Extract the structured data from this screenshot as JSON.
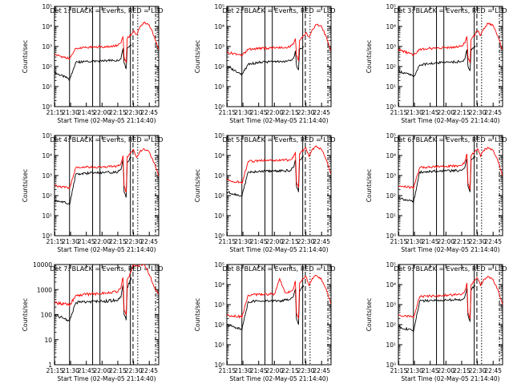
{
  "colors": {
    "events": "#000000",
    "lld": "#ff0000",
    "axis": "#000000"
  },
  "common": {
    "xlabel": "Start Time (02-May-05 21:14:40)",
    "ylabel": "Counts/sec",
    "x_ticks": [
      "21:15",
      "21:30",
      "21:45",
      "22:00",
      "22:15",
      "22:30",
      "22:45"
    ]
  },
  "chart_data": [
    {
      "type": "line",
      "title": "Det 1: BLACK = Events, RED = LLD",
      "y_scale": "log",
      "xlim": [
        "21:14:40",
        "22:54:00"
      ],
      "ylim": [
        1,
        100000
      ],
      "y_ticks": [
        "10⁰",
        "10¹",
        "10²",
        "10³",
        "10⁴",
        "10⁵"
      ],
      "series": [
        {
          "name": "Events",
          "x": [
            "21:14:40",
            "21:28",
            "21:29",
            "21:35",
            "21:45",
            "22:00",
            "22:15",
            "22:18",
            "22:20",
            "22:21",
            "22:23",
            "22:24",
            "22:28",
            "22:30",
            "22:33",
            "22:36",
            "22:40",
            "22:45",
            "22:50",
            "22:54"
          ],
          "y": [
            50,
            25,
            22,
            160,
            180,
            190,
            200,
            250,
            800,
            150,
            80,
            800,
            1200,
            null,
            null,
            null,
            null,
            null,
            null,
            null
          ]
        },
        {
          "name": "LLD",
          "x": [
            "21:14:40",
            "21:28",
            "21:29",
            "21:35",
            "21:45",
            "22:00",
            "22:15",
            "22:18",
            "22:20",
            "22:21",
            "22:23",
            "22:24",
            "22:28",
            "22:30",
            "22:33",
            "22:36",
            "22:40",
            "22:45",
            "22:50",
            "22:54"
          ],
          "y": [
            400,
            250,
            230,
            800,
            900,
            950,
            1100,
            1500,
            3000,
            300,
            150,
            2500,
            4000,
            6000,
            4000,
            9000,
            15000,
            12000,
            3000,
            700
          ]
        }
      ]
    },
    {
      "type": "line",
      "title": "Det 2: BLACK = Events, RED = LLD",
      "y_scale": "log",
      "xlim": [
        "21:14:40",
        "22:54:00"
      ],
      "ylim": [
        1,
        100000
      ],
      "y_ticks": [
        "10⁰",
        "10¹",
        "10²",
        "10³",
        "10⁴",
        "10⁵"
      ],
      "series": [
        {
          "name": "Events",
          "x": [
            "21:14:40",
            "21:28",
            "21:29",
            "21:35",
            "21:45",
            "22:00",
            "22:15",
            "22:18",
            "22:20",
            "22:21",
            "22:23",
            "22:24",
            "22:28",
            "22:30",
            "22:33",
            "22:36",
            "22:40",
            "22:45",
            "22:50",
            "22:54"
          ],
          "y": [
            100,
            45,
            40,
            130,
            160,
            180,
            190,
            250,
            600,
            120,
            70,
            700,
            1000,
            null,
            null,
            null,
            null,
            null,
            null,
            null
          ]
        },
        {
          "name": "LLD",
          "x": [
            "21:14:40",
            "21:28",
            "21:29",
            "21:35",
            "21:45",
            "22:00",
            "22:15",
            "22:18",
            "22:20",
            "22:21",
            "22:23",
            "22:24",
            "22:28",
            "22:30",
            "22:33",
            "22:36",
            "22:40",
            "22:45",
            "22:50",
            "22:54"
          ],
          "y": [
            500,
            400,
            350,
            700,
            800,
            850,
            950,
            1300,
            2500,
            350,
            200,
            2000,
            3500,
            5000,
            3000,
            7000,
            12000,
            10000,
            2500,
            600
          ]
        }
      ]
    },
    {
      "type": "line",
      "title": "Det 3: BLACK = Events, RED = LLD",
      "y_scale": "log",
      "xlim": [
        "21:14:40",
        "22:54:00"
      ],
      "ylim": [
        1,
        100000
      ],
      "y_ticks": [
        "10⁰",
        "10¹",
        "10²",
        "10³",
        "10⁴",
        "10⁵"
      ],
      "series": [
        {
          "name": "Events",
          "x": [
            "21:14:40",
            "21:28",
            "21:29",
            "21:35",
            "21:45",
            "22:00",
            "22:15",
            "22:18",
            "22:20",
            "22:21",
            "22:23",
            "22:24",
            "22:28",
            "22:30",
            "22:33",
            "22:36",
            "22:40",
            "22:45",
            "22:50",
            "22:54"
          ],
          "y": [
            60,
            35,
            30,
            120,
            140,
            160,
            180,
            230,
            700,
            110,
            60,
            750,
            1100,
            null,
            null,
            null,
            null,
            null,
            null,
            null
          ]
        },
        {
          "name": "LLD",
          "x": [
            "21:14:40",
            "21:28",
            "21:29",
            "21:35",
            "21:45",
            "22:00",
            "22:15",
            "22:18",
            "22:20",
            "22:21",
            "22:23",
            "22:24",
            "22:28",
            "22:30",
            "22:33",
            "22:36",
            "22:40",
            "22:45",
            "22:50",
            "22:54"
          ],
          "y": [
            700,
            400,
            380,
            700,
            800,
            900,
            1000,
            1500,
            3000,
            300,
            150,
            2200,
            4000,
            6000,
            3500,
            8000,
            14000,
            11000,
            2800,
            700
          ]
        }
      ]
    },
    {
      "type": "line",
      "title": "Det 4: BLACK = Events, RED = LLD",
      "y_scale": "log",
      "xlim": [
        "21:14:40",
        "22:54:00"
      ],
      "ylim": [
        1,
        100000
      ],
      "y_ticks": [
        "10⁰",
        "10¹",
        "10²",
        "10³",
        "10⁴",
        "10⁵"
      ],
      "series": [
        {
          "name": "Events",
          "x": [
            "21:14:40",
            "21:28",
            "21:29",
            "21:35",
            "21:45",
            "22:00",
            "22:15",
            "22:18",
            "22:20",
            "22:21",
            "22:23",
            "22:24",
            "22:28",
            "22:30",
            "22:33",
            "22:36",
            "22:40",
            "22:45",
            "22:50",
            "22:54"
          ],
          "y": [
            60,
            40,
            35,
            1200,
            1300,
            1400,
            1500,
            2000,
            6000,
            150,
            80,
            5000,
            8000,
            null,
            null,
            null,
            null,
            null,
            null,
            null
          ]
        },
        {
          "name": "LLD",
          "x": [
            "21:14:40",
            "21:28",
            "21:29",
            "21:35",
            "21:45",
            "22:00",
            "22:15",
            "22:18",
            "22:20",
            "22:21",
            "22:23",
            "22:24",
            "22:28",
            "22:30",
            "22:33",
            "22:36",
            "22:40",
            "22:45",
            "22:50",
            "22:54"
          ],
          "y": [
            300,
            250,
            230,
            2500,
            2600,
            2700,
            3000,
            4000,
            10000,
            300,
            150,
            9000,
            15000,
            20000,
            8000,
            15000,
            22000,
            15000,
            4000,
            900
          ]
        }
      ]
    },
    {
      "type": "line",
      "title": "Det 5: BLACK = Events, RED = LLD",
      "y_scale": "log",
      "xlim": [
        "21:14:40",
        "22:54:00"
      ],
      "ylim": [
        1,
        100000
      ],
      "y_ticks": [
        "10⁰",
        "10¹",
        "10²",
        "10³",
        "10⁴",
        "10⁵"
      ],
      "series": [
        {
          "name": "Events",
          "x": [
            "21:14:40",
            "21:28",
            "21:29",
            "21:35",
            "21:45",
            "22:00",
            "22:15",
            "22:18",
            "22:20",
            "22:21",
            "22:23",
            "22:24",
            "22:28",
            "22:30",
            "22:33",
            "22:36",
            "22:40",
            "22:45",
            "22:50",
            "22:54"
          ],
          "y": [
            150,
            100,
            90,
            1500,
            1600,
            1700,
            1800,
            2500,
            6000,
            300,
            150,
            6000,
            9000,
            null,
            null,
            null,
            null,
            null,
            null,
            null
          ]
        },
        {
          "name": "LLD",
          "x": [
            "21:14:40",
            "21:28",
            "21:29",
            "21:35",
            "21:45",
            "22:00",
            "22:15",
            "22:18",
            "22:20",
            "22:21",
            "22:23",
            "22:24",
            "22:28",
            "22:30",
            "22:33",
            "22:36",
            "22:40",
            "22:45",
            "22:50",
            "22:54"
          ],
          "y": [
            600,
            450,
            400,
            5000,
            5500,
            5800,
            6000,
            8000,
            15000,
            500,
            250,
            12000,
            20000,
            25000,
            9000,
            20000,
            30000,
            20000,
            5000,
            1200
          ]
        }
      ]
    },
    {
      "type": "line",
      "title": "Det 6: BLACK = Events, RED = LLD",
      "y_scale": "log",
      "xlim": [
        "21:14:40",
        "22:54:00"
      ],
      "ylim": [
        1,
        100000
      ],
      "y_ticks": [
        "10⁰",
        "10¹",
        "10²",
        "10³",
        "10⁴",
        "10⁵"
      ],
      "series": [
        {
          "name": "Events",
          "x": [
            "21:14:40",
            "21:28",
            "21:29",
            "21:35",
            "21:45",
            "22:00",
            "22:15",
            "22:18",
            "22:20",
            "22:21",
            "22:23",
            "22:24",
            "22:28",
            "22:30",
            "22:33",
            "22:36",
            "22:40",
            "22:45",
            "22:50",
            "22:54"
          ],
          "y": [
            80,
            50,
            45,
            1500,
            1600,
            1700,
            1800,
            2500,
            7000,
            300,
            150,
            6000,
            9000,
            null,
            null,
            null,
            null,
            null,
            null,
            null
          ]
        },
        {
          "name": "LLD",
          "x": [
            "21:14:40",
            "21:28",
            "21:29",
            "21:35",
            "21:45",
            "22:00",
            "22:15",
            "22:18",
            "22:20",
            "22:21",
            "22:23",
            "22:24",
            "22:28",
            "22:30",
            "22:33",
            "22:36",
            "22:40",
            "22:45",
            "22:50",
            "22:54"
          ],
          "y": [
            300,
            250,
            230,
            2500,
            2700,
            2900,
            3200,
            5000,
            12000,
            400,
            200,
            10000,
            18000,
            22000,
            9000,
            18000,
            26000,
            18000,
            4500,
            1000
          ]
        }
      ]
    },
    {
      "type": "line",
      "title": "Det 7: BLACK = Events, RED = LLD",
      "y_scale": "log",
      "xlim": [
        "21:14:40",
        "22:54:00"
      ],
      "ylim": [
        1,
        10000
      ],
      "y_ticks": [
        "1",
        "10",
        "100",
        "1000",
        "10000"
      ],
      "series": [
        {
          "name": "Events",
          "x": [
            "21:14:40",
            "21:28",
            "21:29",
            "21:35",
            "21:45",
            "22:00",
            "22:15",
            "22:18",
            "22:20",
            "22:21",
            "22:23",
            "22:24",
            "22:28",
            "22:30",
            "22:33",
            "22:36",
            "22:40",
            "22:45",
            "22:50",
            "22:54"
          ],
          "y": [
            100,
            60,
            55,
            300,
            320,
            340,
            380,
            500,
            1500,
            100,
            60,
            1200,
            3000,
            null,
            null,
            null,
            null,
            null,
            null,
            null
          ]
        },
        {
          "name": "LLD",
          "x": [
            "21:14:40",
            "21:28",
            "21:29",
            "21:35",
            "21:45",
            "22:00",
            "22:15",
            "22:18",
            "22:20",
            "22:21",
            "22:23",
            "22:24",
            "22:28",
            "22:30",
            "22:33",
            "22:36",
            "22:40",
            "22:45",
            "22:50",
            "22:54"
          ],
          "y": [
            300,
            250,
            230,
            600,
            650,
            700,
            800,
            1200,
            3000,
            150,
            100,
            2500,
            6000,
            10000,
            9000,
            10000,
            10000,
            4000,
            1200,
            700
          ]
        }
      ]
    },
    {
      "type": "line",
      "title": "Det 8: BLACK = Events, RED = LLD",
      "y_scale": "log",
      "xlim": [
        "21:14:40",
        "22:54:00"
      ],
      "ylim": [
        1,
        100000
      ],
      "y_ticks": [
        "10⁰",
        "10¹",
        "10²",
        "10³",
        "10⁴",
        "10⁵"
      ],
      "series": [
        {
          "name": "Events",
          "x": [
            "21:14:40",
            "21:28",
            "21:29",
            "21:35",
            "21:45",
            "22:00",
            "22:05",
            "22:10",
            "22:15",
            "22:18",
            "22:20",
            "22:21",
            "22:23",
            "22:24",
            "22:28",
            "22:30",
            "22:33",
            "22:36",
            "22:40",
            "22:45",
            "22:50",
            "22:54"
          ],
          "y": [
            100,
            60,
            55,
            1400,
            1500,
            1600,
            1500,
            1700,
            1800,
            2500,
            6000,
            200,
            100,
            5000,
            9000,
            null,
            null,
            null,
            null,
            null,
            null,
            null
          ]
        },
        {
          "name": "LLD",
          "x": [
            "21:14:40",
            "21:28",
            "21:29",
            "21:35",
            "21:45",
            "22:00",
            "22:05",
            "22:10",
            "22:15",
            "22:18",
            "22:20",
            "22:21",
            "22:23",
            "22:24",
            "22:28",
            "22:30",
            "22:33",
            "22:36",
            "22:40",
            "22:45",
            "22:50",
            "22:54"
          ],
          "y": [
            300,
            250,
            230,
            3000,
            3200,
            3400,
            20000,
            4000,
            4500,
            6000,
            15000,
            400,
            200,
            12000,
            20000,
            25000,
            9000,
            20000,
            28000,
            18000,
            4500,
            1100
          ]
        }
      ]
    },
    {
      "type": "line",
      "title": "Det 9: BLACK = Events, RED = LLD",
      "y_scale": "log",
      "xlim": [
        "21:14:40",
        "22:54:00"
      ],
      "ylim": [
        1,
        100000
      ],
      "y_ticks": [
        "10⁰",
        "10¹",
        "10²",
        "10³",
        "10⁴",
        "10⁵"
      ],
      "series": [
        {
          "name": "Events",
          "x": [
            "21:14:40",
            "21:28",
            "21:29",
            "21:35",
            "21:45",
            "22:00",
            "22:15",
            "22:18",
            "22:20",
            "22:21",
            "22:23",
            "22:24",
            "22:28",
            "22:30",
            "22:33",
            "22:36",
            "22:40",
            "22:45",
            "22:50",
            "22:54"
          ],
          "y": [
            80,
            50,
            45,
            1500,
            1600,
            1700,
            1800,
            2500,
            7000,
            300,
            150,
            6000,
            9000,
            null,
            null,
            null,
            null,
            null,
            null,
            null
          ]
        },
        {
          "name": "LLD",
          "x": [
            "21:14:40",
            "21:28",
            "21:29",
            "21:35",
            "21:45",
            "22:00",
            "22:15",
            "22:18",
            "22:20",
            "22:21",
            "22:23",
            "22:24",
            "22:28",
            "22:30",
            "22:33",
            "22:36",
            "22:40",
            "22:45",
            "22:50",
            "22:54"
          ],
          "y": [
            300,
            250,
            230,
            2500,
            2700,
            2900,
            3200,
            5000,
            12000,
            400,
            200,
            10000,
            18000,
            22000,
            9000,
            18000,
            26000,
            18000,
            4500,
            1000
          ]
        }
      ]
    }
  ]
}
